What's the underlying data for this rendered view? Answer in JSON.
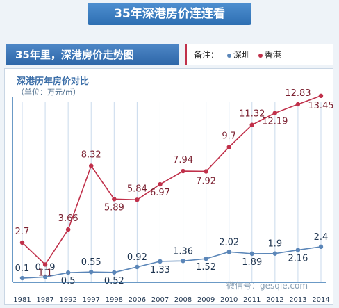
{
  "banner": {
    "title": "35年深港房价连连看"
  },
  "subheader": {
    "left": "35年里，深港房价走势图"
  },
  "legend_box": {
    "label": "备注：",
    "items": [
      "深圳",
      "香港"
    ]
  },
  "colors": {
    "shenzhen": "#5b86b8",
    "hongkong": "#c0304a",
    "axis": "#6b9ac6"
  },
  "watermark": "微信号：gesqie.com",
  "chart_data": {
    "type": "line",
    "title": "深港历年房价对比",
    "ylabel": "（单位：万元/㎡）",
    "xlabel": "",
    "categories": [
      "1981",
      "1987",
      "1992",
      "1997",
      "1998",
      "2006",
      "2007",
      "2008",
      "2009",
      "2010",
      "2011",
      "2012",
      "2013",
      "2014"
    ],
    "ylim": [
      0,
      14
    ],
    "series": [
      {
        "name": "深圳",
        "values": [
          0.1,
          0.19,
          0.5,
          0.55,
          0.52,
          0.92,
          1.33,
          1.36,
          1.52,
          2.02,
          1.89,
          1.9,
          2.16,
          2.4
        ]
      },
      {
        "name": "香港",
        "values": [
          2.7,
          1.1,
          3.66,
          8.32,
          5.89,
          5.84,
          6.97,
          7.94,
          7.92,
          9.7,
          11.32,
          12.19,
          12.83,
          13.45
        ]
      }
    ],
    "grid": true,
    "legend_position": "top-right"
  }
}
